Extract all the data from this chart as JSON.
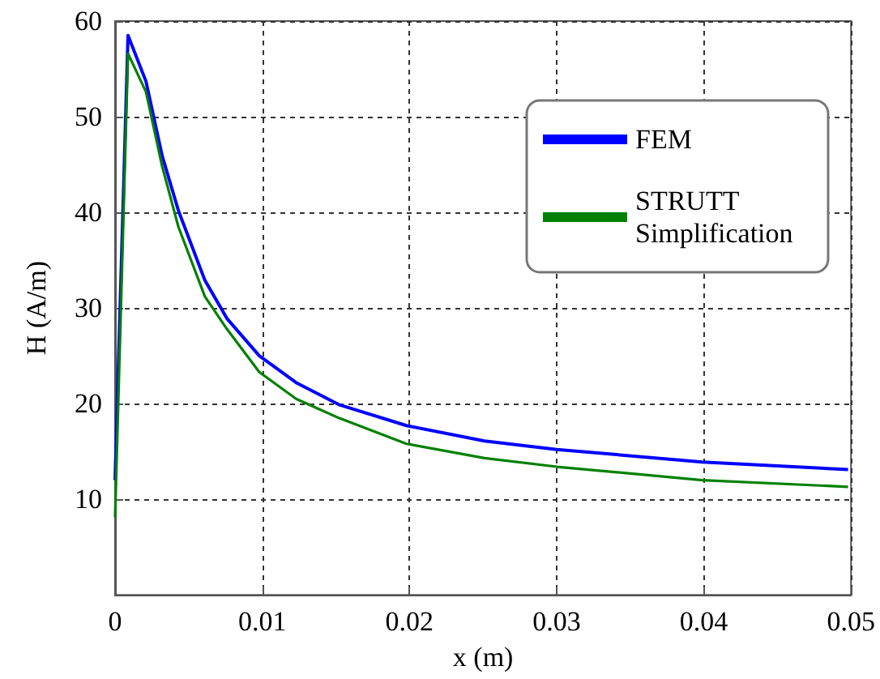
{
  "chart_data": {
    "type": "line",
    "xlabel": "x (m)",
    "ylabel": "H (A/m)",
    "xlim": [
      0,
      0.05
    ],
    "xticks": [
      0,
      0.01,
      0.02,
      0.03,
      0.04,
      0.05
    ],
    "ylim": [
      0,
      60
    ],
    "yticks": [
      10,
      20,
      30,
      40,
      50,
      60
    ],
    "grid": true,
    "legend": "top right",
    "marker": "none",
    "line_style": "solid",
    "series": [
      {
        "name": "FEM",
        "color": "#0000ff",
        "x": [
          0,
          0.00088,
          0.0021,
          0.0032,
          0.0043,
          0.0061,
          0.0076,
          0.0098,
          0.0123,
          0.0152,
          0.0198,
          0.0251,
          0.03,
          0.0399,
          0.0498
        ],
        "values": [
          12,
          58.5,
          53.7,
          45.9,
          40.2,
          32.9,
          28.9,
          25.0,
          22.2,
          19.9,
          17.7,
          16.1,
          15.2,
          13.9,
          13.1
        ]
      },
      {
        "name": "STRUTT Simplification",
        "color": "#008000",
        "x": [
          0,
          0.00088,
          0.0021,
          0.0032,
          0.0043,
          0.0061,
          0.0076,
          0.0098,
          0.0123,
          0.0152,
          0.0198,
          0.0251,
          0.03,
          0.0399,
          0.0498
        ],
        "values": [
          8.1,
          56.6,
          52.6,
          44.8,
          38.5,
          31.2,
          27.8,
          23.3,
          20.5,
          18.5,
          15.8,
          14.3,
          13.4,
          12.0,
          11.3
        ]
      }
    ]
  }
}
